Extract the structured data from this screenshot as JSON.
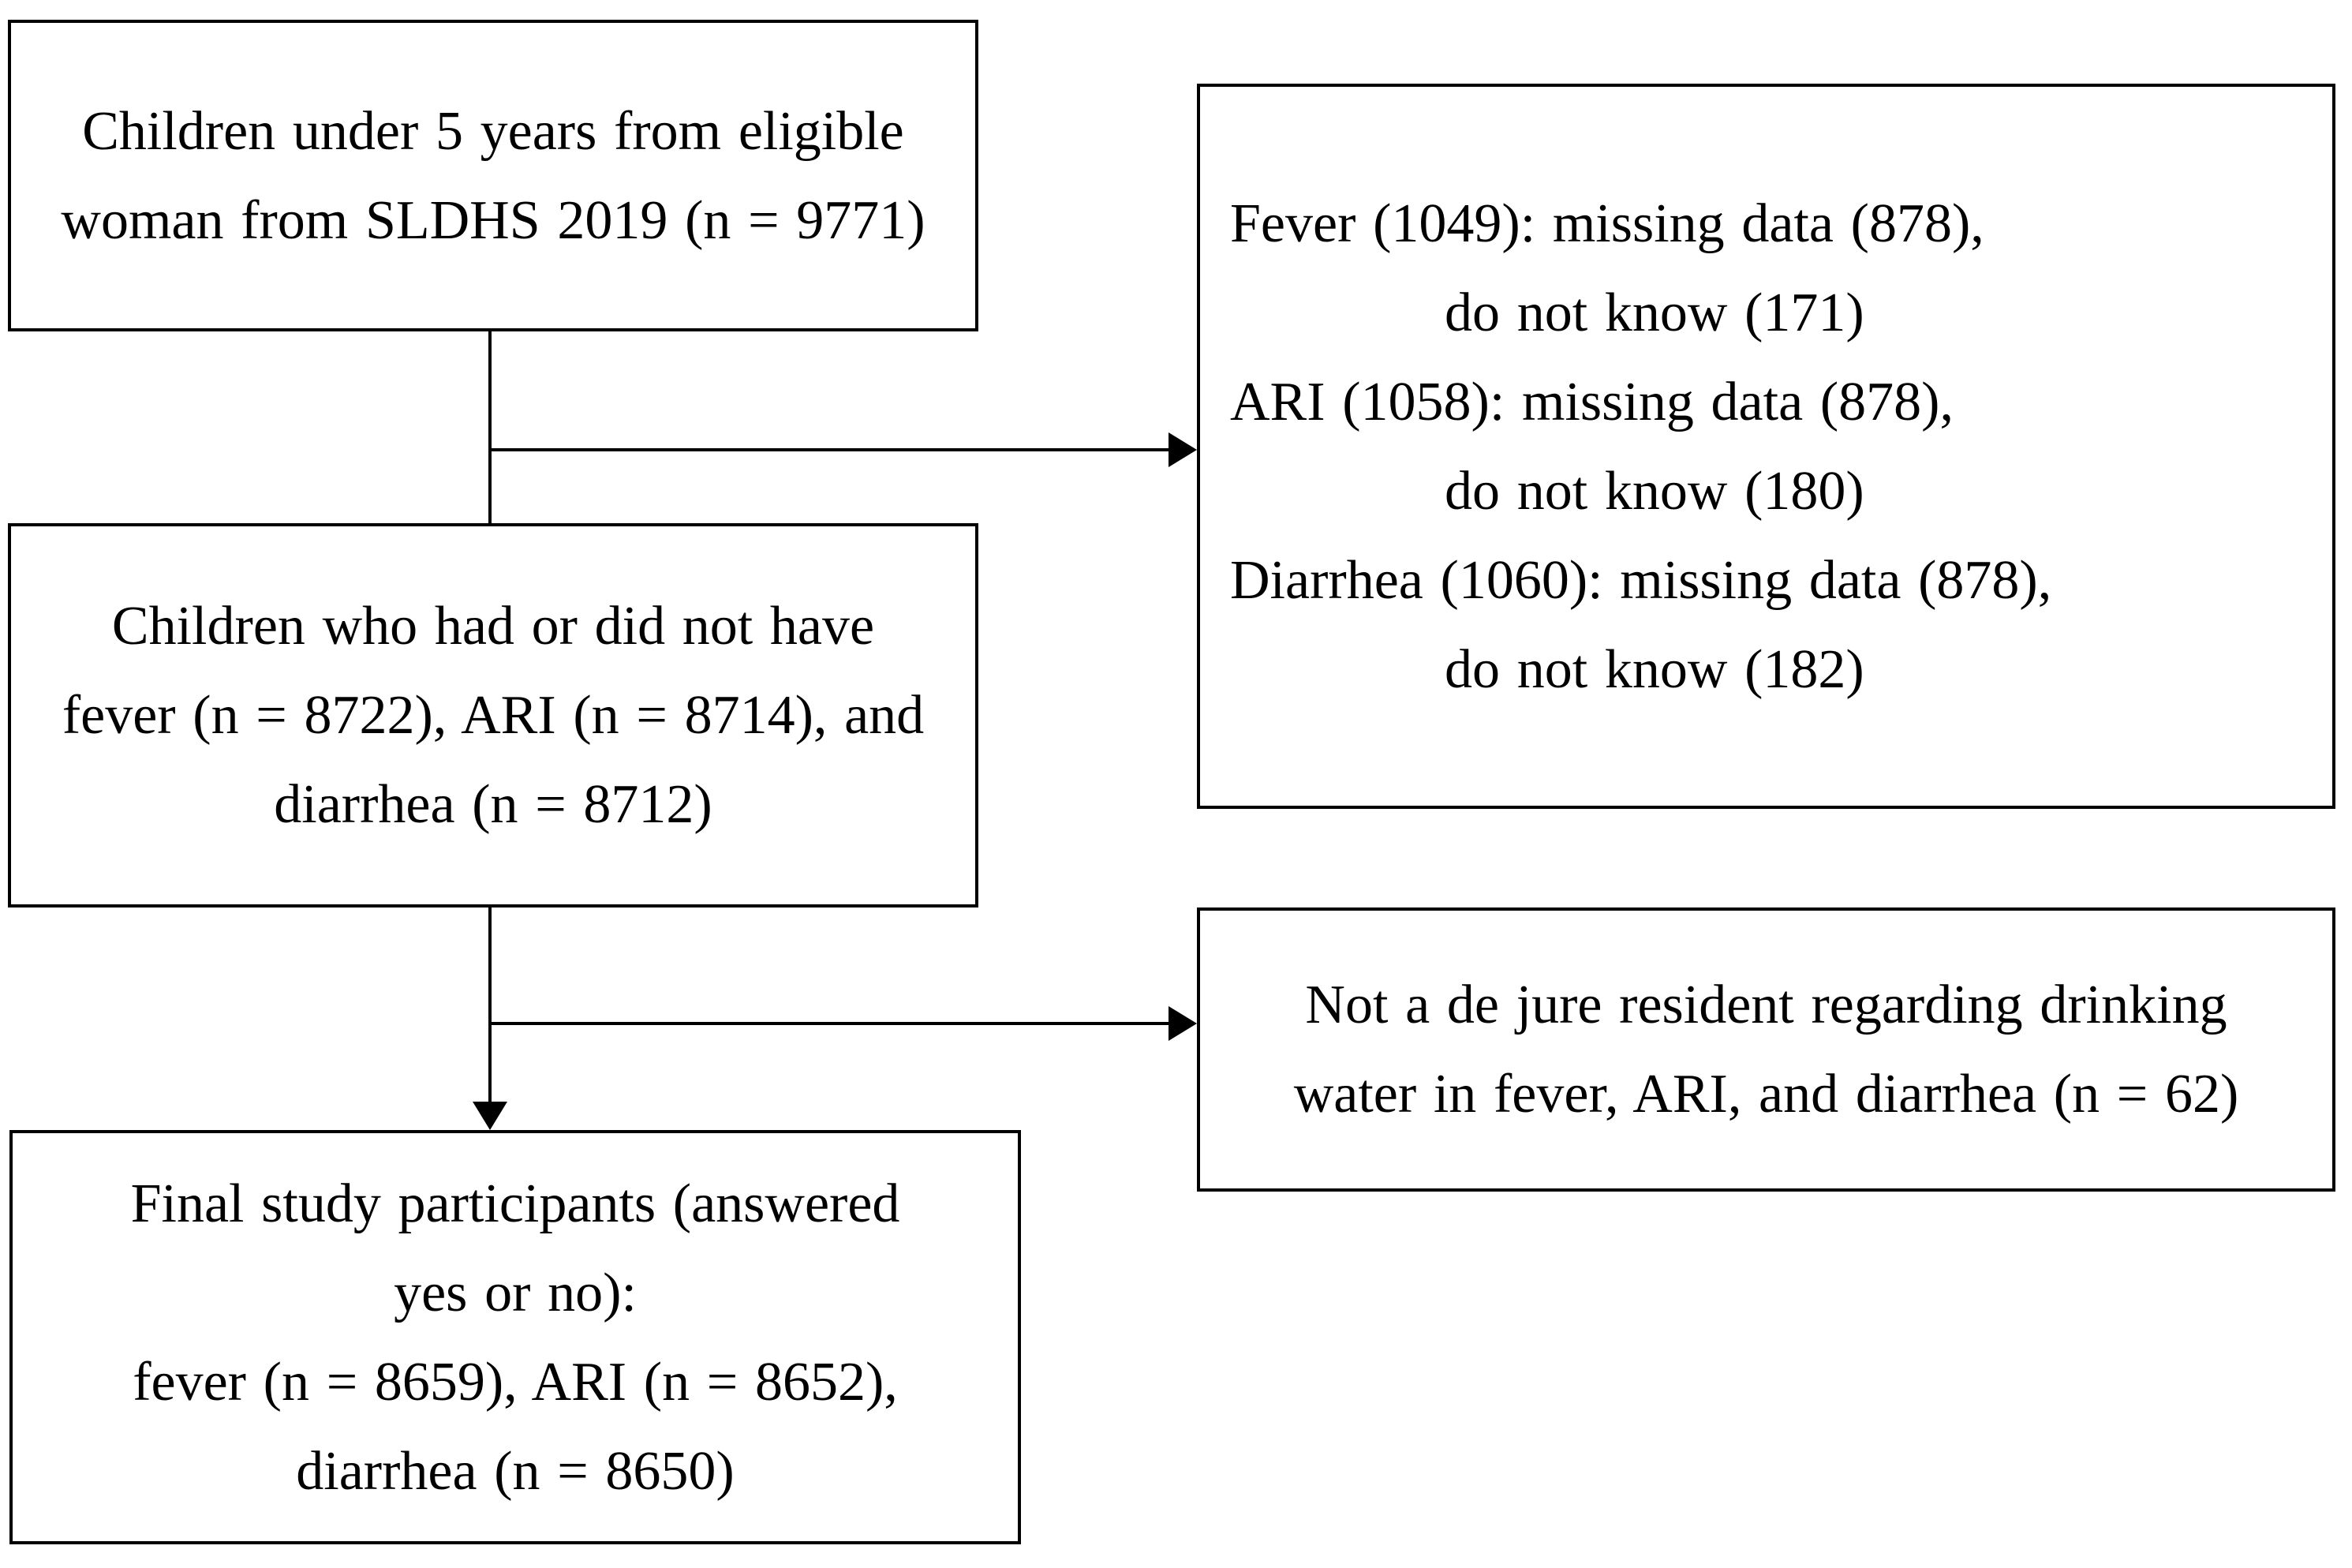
{
  "figure": {
    "type": "flowchart",
    "background_color": "#ffffff",
    "border_color": "#000000",
    "text_color": "#000000"
  },
  "boxes": {
    "source": {
      "lines": [
        "Children under 5 years from eligible",
        "woman from SLDHS 2019 (n = 9771)"
      ]
    },
    "exclusions_symptoms": {
      "lines": [
        "Fever (1049): missing data (878),",
        "do not know (171)",
        "ARI (1058): missing data (878),",
        "do not know (180)",
        "Diarrhea (1060): missing data (878),",
        "do not know (182)"
      ]
    },
    "symptom_cohort": {
      "lines": [
        "Children who had or did not have",
        "fever (n = 8722), ARI (n = 8714), and",
        "diarrhea (n = 8712)"
      ]
    },
    "exclusion_de_jure": {
      "lines": [
        "Not a de jure resident regarding drinking",
        "water in fever, ARI, and diarrhea (n = 62)"
      ]
    },
    "final_participants": {
      "lines": [
        "Final study participants (answered",
        "yes or no):",
        "fever (n = 8659), ARI (n = 8652),",
        "diarrhea (n = 8650)"
      ]
    }
  }
}
